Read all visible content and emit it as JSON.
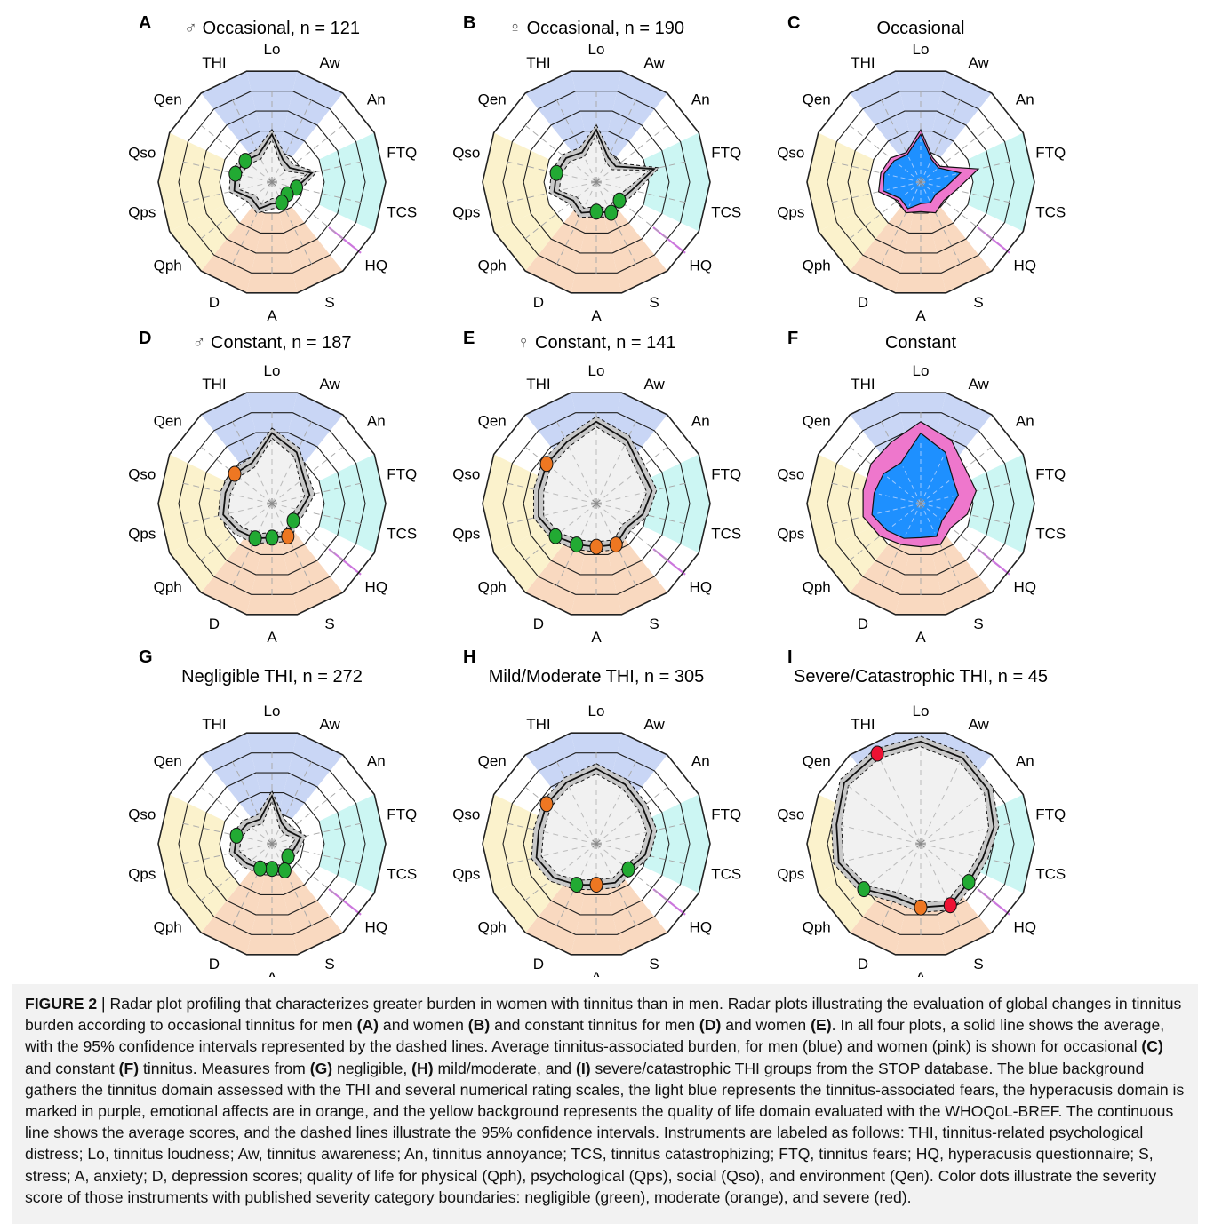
{
  "figure": {
    "axes": [
      "Lo",
      "Aw",
      "An",
      "FTQ",
      "TCS",
      "HQ",
      "S",
      "A",
      "D",
      "Qph",
      "Qps",
      "Qso",
      "Qen",
      "THI"
    ],
    "domain_colors": {
      "tinnitus": "#c9d6f5",
      "fears": "#ccf6f3",
      "hyperacusis": "#cc77dd",
      "emotional": "#f9d9c0",
      "quality_of_life": "#fbf2cc"
    },
    "series_colors": {
      "men": "#1e90ff",
      "women": "#ee77cc",
      "ci_fill": "#c8c8c8"
    },
    "severity_colors": {
      "negligible": "#22aa33",
      "moderate": "#ee7722",
      "severe": "#ee1133"
    }
  },
  "chart_data": [
    {
      "panel": "A",
      "symbol": "♂",
      "title": "Occasional, n = 121",
      "type": "radar",
      "mean": [
        0.42,
        0.22,
        0.2,
        0.36,
        0.22,
        0.17,
        0.2,
        0.19,
        0.26,
        0.23,
        0.34,
        0.33,
        0.3,
        0.27
      ],
      "severity_dots": [
        {
          "axis": "TCS",
          "severity": "negligible"
        },
        {
          "axis": "HQ",
          "severity": "negligible"
        },
        {
          "axis": "S",
          "severity": "negligible"
        },
        {
          "axis": "Qso",
          "severity": "negligible"
        },
        {
          "axis": "Qen",
          "severity": "negligible"
        }
      ]
    },
    {
      "panel": "B",
      "symbol": "♀",
      "title": "Occasional, n = 190",
      "type": "radar",
      "mean": [
        0.46,
        0.24,
        0.22,
        0.52,
        0.32,
        0.26,
        0.3,
        0.26,
        0.3,
        0.26,
        0.38,
        0.36,
        0.34,
        0.29
      ],
      "severity_dots": [
        {
          "axis": "HQ",
          "severity": "negligible"
        },
        {
          "axis": "S",
          "severity": "negligible"
        },
        {
          "axis": "A",
          "severity": "negligible"
        },
        {
          "axis": "Qso",
          "severity": "negligible"
        }
      ]
    },
    {
      "panel": "C",
      "symbol": "",
      "title": "Occasional",
      "type": "radar",
      "series": [
        {
          "values": [
            0.42,
            0.22,
            0.2,
            0.36,
            0.22,
            0.17,
            0.2,
            0.19,
            0.26,
            0.23,
            0.34,
            0.33,
            0.3,
            0.27
          ]
        },
        {
          "values": [
            0.46,
            0.24,
            0.22,
            0.52,
            0.32,
            0.26,
            0.3,
            0.26,
            0.3,
            0.26,
            0.38,
            0.36,
            0.34,
            0.29
          ]
        }
      ]
    },
    {
      "panel": "D",
      "symbol": "♂",
      "title": "Constant, n = 187",
      "type": "radar",
      "mean": [
        0.62,
        0.5,
        0.36,
        0.34,
        0.26,
        0.24,
        0.32,
        0.3,
        0.34,
        0.38,
        0.44,
        0.42,
        0.42,
        0.4
      ],
      "severity_dots": [
        {
          "axis": "HQ",
          "severity": "negligible"
        },
        {
          "axis": "S",
          "severity": "moderate"
        },
        {
          "axis": "A",
          "severity": "negligible"
        },
        {
          "axis": "D",
          "severity": "negligible"
        },
        {
          "axis": "Qen",
          "severity": "moderate"
        }
      ]
    },
    {
      "panel": "E",
      "symbol": "♀",
      "title": "Constant, n = 141",
      "type": "radar",
      "mean": [
        0.72,
        0.62,
        0.5,
        0.5,
        0.42,
        0.34,
        0.4,
        0.38,
        0.4,
        0.46,
        0.52,
        0.52,
        0.56,
        0.6
      ],
      "severity_dots": [
        {
          "axis": "S",
          "severity": "moderate"
        },
        {
          "axis": "A",
          "severity": "moderate"
        },
        {
          "axis": "D",
          "severity": "negligible"
        },
        {
          "axis": "Qph",
          "severity": "negligible"
        },
        {
          "axis": "Qen",
          "severity": "moderate"
        }
      ]
    },
    {
      "panel": "F",
      "symbol": "",
      "title": "Constant",
      "type": "radar",
      "series": [
        {
          "values": [
            0.62,
            0.5,
            0.36,
            0.34,
            0.26,
            0.24,
            0.32,
            0.3,
            0.34,
            0.38,
            0.44,
            0.42,
            0.42,
            0.4
          ]
        },
        {
          "values": [
            0.72,
            0.62,
            0.5,
            0.5,
            0.42,
            0.34,
            0.4,
            0.38,
            0.4,
            0.46,
            0.52,
            0.52,
            0.56,
            0.6
          ]
        }
      ]
    },
    {
      "panel": "G",
      "symbol": "",
      "title": "Negligible THI, n = 272",
      "type": "radar",
      "mean": [
        0.42,
        0.2,
        0.18,
        0.26,
        0.2,
        0.18,
        0.26,
        0.22,
        0.24,
        0.28,
        0.34,
        0.32,
        0.28,
        0.24
      ],
      "severity_dots": [
        {
          "axis": "HQ",
          "severity": "negligible"
        },
        {
          "axis": "S",
          "severity": "negligible"
        },
        {
          "axis": "A",
          "severity": "negligible"
        },
        {
          "axis": "D",
          "severity": "negligible"
        },
        {
          "axis": "Qso",
          "severity": "negligible"
        }
      ]
    },
    {
      "panel": "H",
      "symbol": "",
      "title": "Mild/Moderate THI, n = 305",
      "type": "radar",
      "mean": [
        0.66,
        0.58,
        0.52,
        0.5,
        0.44,
        0.36,
        0.38,
        0.36,
        0.4,
        0.48,
        0.54,
        0.52,
        0.56,
        0.6
      ],
      "severity_dots": [
        {
          "axis": "HQ",
          "severity": "negligible"
        },
        {
          "axis": "A",
          "severity": "moderate"
        },
        {
          "axis": "D",
          "severity": "negligible"
        },
        {
          "axis": "Qen",
          "severity": "moderate"
        }
      ]
    },
    {
      "panel": "I",
      "symbol": "",
      "title": "Severe/Catastrophic THI, n = 45",
      "type": "radar",
      "mean": [
        0.9,
        0.84,
        0.76,
        0.66,
        0.56,
        0.54,
        0.6,
        0.56,
        0.52,
        0.64,
        0.74,
        0.76,
        0.86,
        0.88
      ],
      "severity_dots": [
        {
          "axis": "HQ",
          "severity": "negligible"
        },
        {
          "axis": "S",
          "severity": "severe"
        },
        {
          "axis": "A",
          "severity": "moderate"
        },
        {
          "axis": "Qph",
          "severity": "negligible"
        },
        {
          "axis": "THI",
          "severity": "severe"
        }
      ]
    }
  ],
  "caption": {
    "figure_label": "FIGURE 2",
    "text_html": " | Radar plot profiling that characterizes greater burden in women with tinnitus than in men. Radar plots illustrating the evaluation of global changes in tinnitus burden according to occasional tinnitus for men <b>(A)</b> and women <b>(B)</b> and constant tinnitus for men <b>(D)</b> and women <b>(E)</b>. In all four plots, a solid line shows the average, with the 95% confidence intervals represented by the dashed lines. Average tinnitus-associated burden, for men (blue) and women (pink) is shown for occasional <b>(C)</b> and constant <b>(F)</b> tinnitus. Measures from <b>(G)</b> negligible, <b>(H)</b> mild/moderate, and <b>(I)</b> severe/catastrophic THI groups from the STOP database. The blue background gathers the tinnitus domain assessed with the THI and several numerical rating scales, the light blue represents the tinnitus-associated fears, the hyperacusis domain is marked in purple, emotional affects are in orange, and the yellow background represents the quality of life domain evaluated with the WHOQoL-BREF. The continuous line shows the average scores, and the dashed lines illustrate the 95% confidence intervals. Instruments are labeled as follows: THI, tinnitus-related psychological distress; Lo, tinnitus loudness; Aw, tinnitus awareness; An, tinnitus annoyance; TCS, tinnitus catastrophizing; FTQ, tinnitus fears; HQ, hyperacusis questionnaire; S, stress; A, anxiety; D, depression scores; quality of life for physical (Qph), psychological (Qps), social (Qso), and environment (Qen). Color dots illustrate the severity score of those instruments with published severity category boundaries: negligible (green), moderate (orange), and severe (red)."
  }
}
